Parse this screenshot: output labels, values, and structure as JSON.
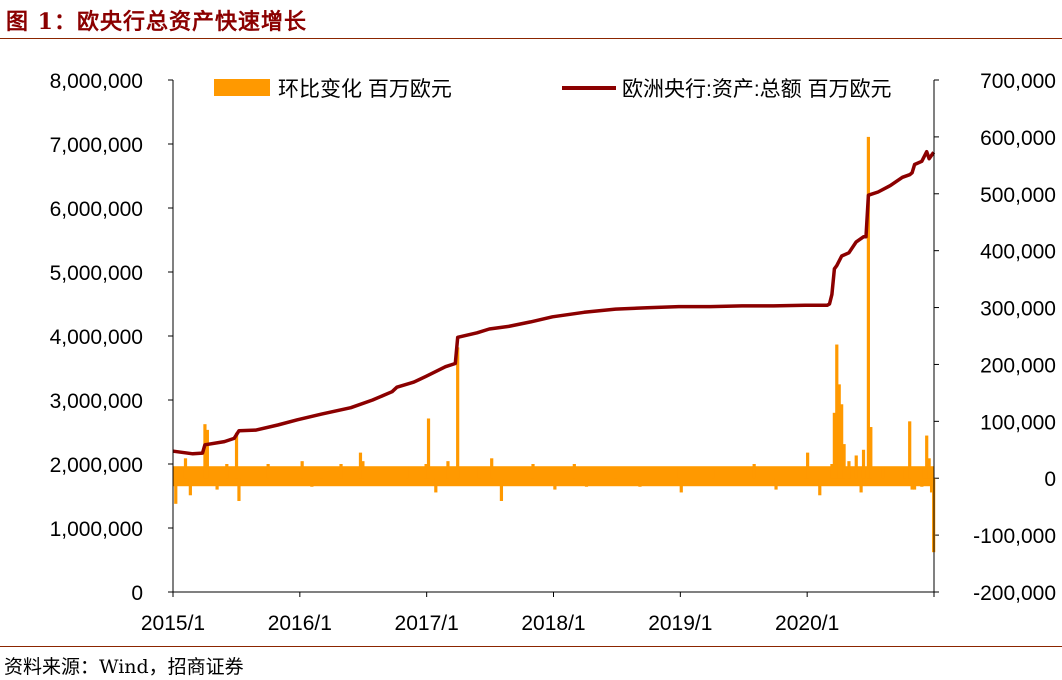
{
  "figure": {
    "title": "图 1：欧央行总资产快速增长",
    "source": "资料来源：Wind，招商证券"
  },
  "chart_data": {
    "type": "line",
    "x_tick_labels": [
      "2015/1",
      "2016/1",
      "2017/1",
      "2018/1",
      "2019/1",
      "2020/1"
    ],
    "x_range": [
      "2015-01",
      "2020-12"
    ],
    "left_axis": {
      "ylim": [
        0,
        8000000
      ],
      "tick_labels": [
        "0",
        "1,000,000",
        "2,000,000",
        "3,000,000",
        "4,000,000",
        "5,000,000",
        "6,000,000",
        "7,000,000",
        "8,000,000"
      ]
    },
    "right_axis": {
      "ylim": [
        -200000,
        700000
      ],
      "tick_labels": [
        "-200,000",
        "-100,000",
        "0",
        "100,000",
        "200,000",
        "300,000",
        "400,000",
        "500,000",
        "600,000",
        "700,000"
      ]
    },
    "legend_placement": "top",
    "series": [
      {
        "name": "环比变化 百万欧元",
        "type": "bar",
        "axis": "right",
        "color": "#FF9900",
        "points": [
          [
            "2015-01-09",
            -45000
          ],
          [
            "2015-02-06",
            35000
          ],
          [
            "2015-02-20",
            -30000
          ],
          [
            "2015-04-03",
            95000
          ],
          [
            "2015-04-10",
            85000
          ],
          [
            "2015-05-08",
            -20000
          ],
          [
            "2015-06-05",
            25000
          ],
          [
            "2015-07-03",
            80000
          ],
          [
            "2015-07-10",
            -40000
          ],
          [
            "2015-10-02",
            25000
          ],
          [
            "2016-01-08",
            30000
          ],
          [
            "2016-02-05",
            -15000
          ],
          [
            "2016-03-04",
            20000
          ],
          [
            "2016-04-29",
            25000
          ],
          [
            "2016-06-24",
            45000
          ],
          [
            "2016-07-01",
            30000
          ],
          [
            "2016-11-04",
            20000
          ],
          [
            "2016-12-30",
            25000
          ],
          [
            "2017-01-06",
            105000
          ],
          [
            "2017-01-27",
            -25000
          ],
          [
            "2017-03-03",
            30000
          ],
          [
            "2017-03-31",
            230000
          ],
          [
            "2017-06-02",
            20000
          ],
          [
            "2017-07-07",
            35000
          ],
          [
            "2017-08-04",
            -40000
          ],
          [
            "2017-11-03",
            25000
          ],
          [
            "2018-01-05",
            -20000
          ],
          [
            "2018-03-02",
            25000
          ],
          [
            "2018-04-06",
            -15000
          ],
          [
            "2018-06-29",
            20000
          ],
          [
            "2018-09-07",
            -15000
          ],
          [
            "2018-12-28",
            20000
          ],
          [
            "2019-01-04",
            -25000
          ],
          [
            "2019-04-05",
            15000
          ],
          [
            "2019-08-02",
            25000
          ],
          [
            "2019-10-04",
            -20000
          ],
          [
            "2019-12-27",
            20000
          ],
          [
            "2020-01-03",
            45000
          ],
          [
            "2020-02-07",
            -30000
          ],
          [
            "2020-03-13",
            25000
          ],
          [
            "2020-03-20",
            115000
          ],
          [
            "2020-03-27",
            235000
          ],
          [
            "2020-04-03",
            165000
          ],
          [
            "2020-04-10",
            130000
          ],
          [
            "2020-04-17",
            60000
          ],
          [
            "2020-05-01",
            30000
          ],
          [
            "2020-05-22",
            40000
          ],
          [
            "2020-06-05",
            -25000
          ],
          [
            "2020-06-12",
            50000
          ],
          [
            "2020-06-26",
            600000
          ],
          [
            "2020-07-03",
            90000
          ],
          [
            "2020-08-07",
            20000
          ],
          [
            "2020-09-25",
            -10000
          ],
          [
            "2020-10-09",
            20000
          ],
          [
            "2020-10-23",
            100000
          ],
          [
            "2020-10-30",
            -20000
          ],
          [
            "2020-11-06",
            -20000
          ],
          [
            "2020-11-27",
            -15000
          ],
          [
            "2020-12-04",
            20000
          ],
          [
            "2020-12-11",
            75000
          ],
          [
            "2020-12-18",
            35000
          ],
          [
            "2020-12-25",
            -25000
          ],
          [
            "2020-12-31",
            -130000
          ]
        ]
      },
      {
        "name": "欧洲央行:资产:总额 百万欧元",
        "type": "line",
        "axis": "left",
        "color": "#8B0000",
        "points": [
          [
            "2015-01-02",
            2200000
          ],
          [
            "2015-02-27",
            2160000
          ],
          [
            "2015-03-27",
            2170000
          ],
          [
            "2015-04-03",
            2300000
          ],
          [
            "2015-05-29",
            2350000
          ],
          [
            "2015-06-26",
            2400000
          ],
          [
            "2015-07-10",
            2520000
          ],
          [
            "2015-08-28",
            2530000
          ],
          [
            "2015-10-30",
            2610000
          ],
          [
            "2015-12-25",
            2690000
          ],
          [
            "2016-03-04",
            2780000
          ],
          [
            "2016-05-27",
            2880000
          ],
          [
            "2016-07-29",
            3000000
          ],
          [
            "2016-09-23",
            3130000
          ],
          [
            "2016-10-07",
            3200000
          ],
          [
            "2016-11-25",
            3280000
          ],
          [
            "2016-12-30",
            3370000
          ],
          [
            "2017-02-24",
            3520000
          ],
          [
            "2017-03-24",
            3570000
          ],
          [
            "2017-03-31",
            3980000
          ],
          [
            "2017-05-26",
            4050000
          ],
          [
            "2017-06-30",
            4110000
          ],
          [
            "2017-08-25",
            4150000
          ],
          [
            "2017-10-27",
            4220000
          ],
          [
            "2017-12-29",
            4300000
          ],
          [
            "2018-03-30",
            4370000
          ],
          [
            "2018-06-29",
            4420000
          ],
          [
            "2018-09-28",
            4440000
          ],
          [
            "2018-12-28",
            4460000
          ],
          [
            "2019-03-29",
            4460000
          ],
          [
            "2019-06-28",
            4470000
          ],
          [
            "2019-09-27",
            4470000
          ],
          [
            "2019-12-27",
            4480000
          ],
          [
            "2020-02-28",
            4480000
          ],
          [
            "2020-03-06",
            4500000
          ],
          [
            "2020-03-13",
            4650000
          ],
          [
            "2020-03-20",
            5050000
          ],
          [
            "2020-03-27",
            5100000
          ],
          [
            "2020-04-10",
            5250000
          ],
          [
            "2020-05-01",
            5300000
          ],
          [
            "2020-05-22",
            5470000
          ],
          [
            "2020-06-12",
            5550000
          ],
          [
            "2020-06-19",
            5550000
          ],
          [
            "2020-06-26",
            6200000
          ],
          [
            "2020-07-24",
            6250000
          ],
          [
            "2020-08-28",
            6350000
          ],
          [
            "2020-10-02",
            6480000
          ],
          [
            "2020-10-23",
            6520000
          ],
          [
            "2020-10-30",
            6550000
          ],
          [
            "2020-11-06",
            6680000
          ],
          [
            "2020-11-27",
            6730000
          ],
          [
            "2020-12-11",
            6880000
          ],
          [
            "2020-12-18",
            6770000
          ],
          [
            "2020-12-31",
            6870000
          ]
        ]
      }
    ]
  }
}
